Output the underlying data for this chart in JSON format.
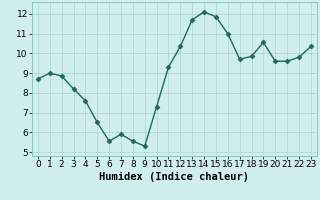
{
  "x": [
    0,
    1,
    2,
    3,
    4,
    5,
    6,
    7,
    8,
    9,
    10,
    11,
    12,
    13,
    14,
    15,
    16,
    17,
    18,
    19,
    20,
    21,
    22,
    23
  ],
  "y": [
    8.7,
    9.0,
    8.85,
    8.2,
    7.6,
    6.5,
    5.55,
    5.9,
    5.55,
    5.3,
    7.3,
    9.3,
    10.35,
    11.7,
    12.1,
    11.85,
    11.0,
    9.7,
    9.85,
    10.55,
    9.6,
    9.6,
    9.8,
    10.35
  ],
  "line_color": "#1a6b5a",
  "marker": "D",
  "marker_size": 2.5,
  "bg_color": "#d0eeee",
  "grid_color": "#b0d8d8",
  "xlabel": "Humidex (Indice chaleur)",
  "xlim": [
    -0.5,
    23.5
  ],
  "ylim": [
    4.8,
    12.6
  ],
  "yticks": [
    5,
    6,
    7,
    8,
    9,
    10,
    11,
    12
  ],
  "xticks": [
    0,
    1,
    2,
    3,
    4,
    5,
    6,
    7,
    8,
    9,
    10,
    11,
    12,
    13,
    14,
    15,
    16,
    17,
    18,
    19,
    20,
    21,
    22,
    23
  ],
  "xlabel_fontsize": 7.5,
  "tick_fontsize": 6.5,
  "line_width": 1.0
}
